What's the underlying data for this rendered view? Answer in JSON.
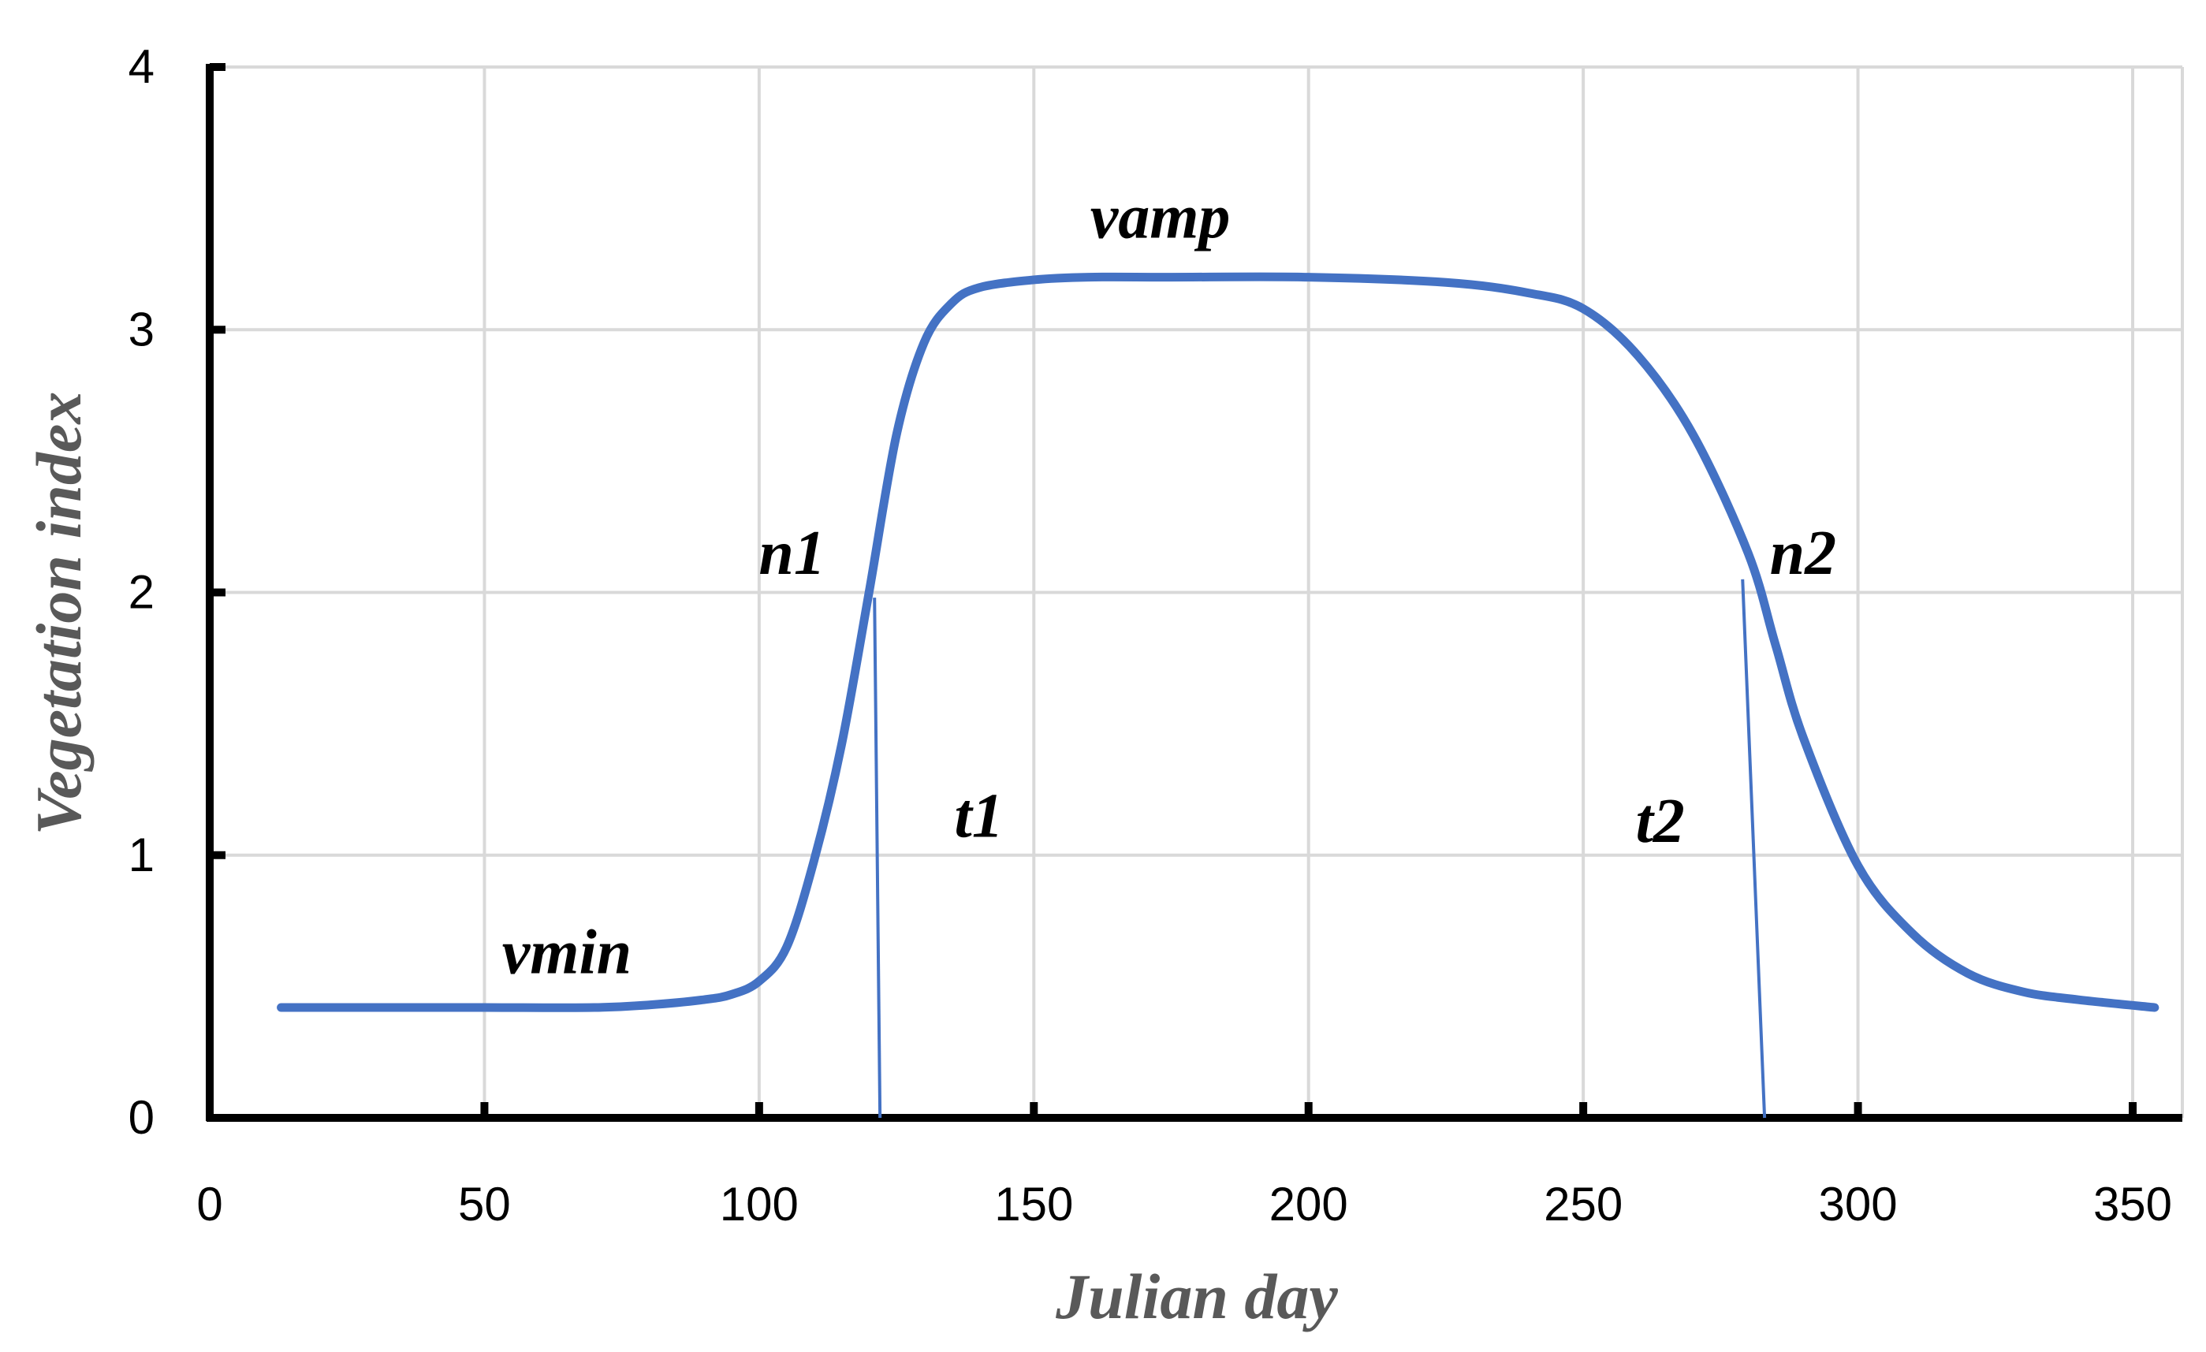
{
  "chart_data": {
    "type": "line",
    "title": "",
    "xlabel": "Julian day",
    "ylabel": "Vegetation index",
    "xlim": [
      0,
      360
    ],
    "ylim": [
      0,
      4
    ],
    "xticks": [
      "0",
      "50",
      "100",
      "150",
      "200",
      "250",
      "300",
      "350"
    ],
    "yticks": [
      "0",
      "1",
      "2",
      "3",
      "4"
    ],
    "grid": true,
    "legend": "none",
    "line_color": "#4472C4",
    "series": [
      {
        "x": [
          13,
          30,
          50,
          70,
          80,
          90,
          95,
          100,
          105,
          110,
          115,
          120,
          125,
          130,
          135,
          140,
          150,
          160,
          175,
          200,
          225,
          240,
          250,
          260,
          270,
          280,
          285,
          290,
          300,
          310,
          320,
          330,
          340,
          354
        ],
        "y": [
          0.42,
          0.42,
          0.42,
          0.42,
          0.43,
          0.45,
          0.47,
          0.52,
          0.65,
          0.98,
          1.42,
          2.0,
          2.6,
          2.95,
          3.1,
          3.16,
          3.19,
          3.2,
          3.2,
          3.2,
          3.18,
          3.14,
          3.08,
          2.9,
          2.6,
          2.15,
          1.8,
          1.45,
          0.96,
          0.7,
          0.55,
          0.48,
          0.45,
          0.42
        ]
      }
    ],
    "annotations": [
      {
        "text": "vmin",
        "x": 65,
        "y": 0.55
      },
      {
        "text": "n1",
        "x": 106,
        "y": 2.07
      },
      {
        "text": "vamp",
        "x": 173,
        "y": 3.35
      },
      {
        "text": "n2",
        "x": 290,
        "y": 2.07
      },
      {
        "text": "t1",
        "x": 140,
        "y": 1.07
      },
      {
        "text": "t2",
        "x": 264,
        "y": 1.05
      }
    ],
    "markers": [
      {
        "x1": 121,
        "y1": 1.98,
        "x2": 122,
        "y2": 0
      },
      {
        "x1": 279,
        "y1": 2.05,
        "x2": 283,
        "y2": 0
      }
    ]
  }
}
